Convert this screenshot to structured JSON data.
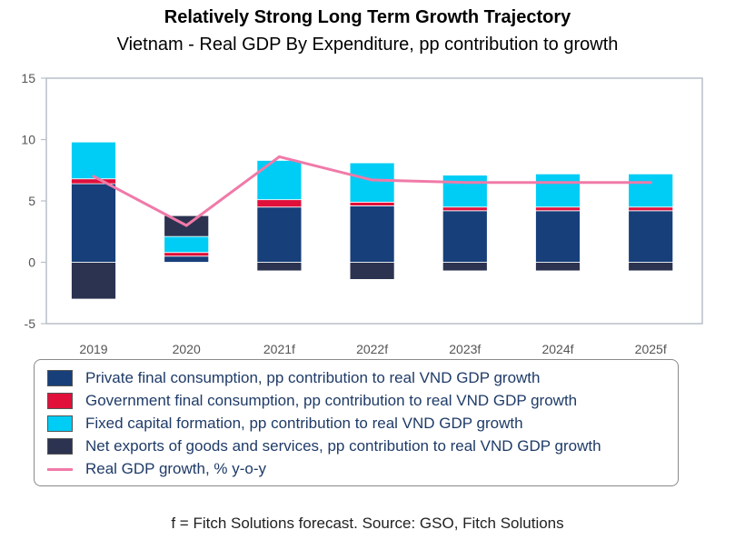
{
  "header": {
    "title": "Relatively Strong Long Term Growth Trajectory",
    "subtitle": "Vietnam - Real GDP By Expenditure, pp contribution to growth"
  },
  "footnote": "f = Fitch Solutions forecast. Source: GSO, Fitch Solutions",
  "colors": {
    "private": "#173f7a",
    "government": "#e0103a",
    "fixed": "#00cdf5",
    "net_exports": "#2b3350",
    "gdp_line": "#f07aa8"
  },
  "chart_data": {
    "type": "bar",
    "stacked": true,
    "title": "Relatively Strong Long Term Growth Trajectory",
    "subtitle": "Vietnam - Real GDP By Expenditure, pp contribution to growth",
    "categories": [
      "2019",
      "2020",
      "2021f",
      "2022f",
      "2023f",
      "2024f",
      "2025f"
    ],
    "ylim": [
      -5,
      15
    ],
    "yticks": [
      -5,
      0,
      5,
      10,
      15
    ],
    "grid": false,
    "legend_position": "bottom",
    "series": [
      {
        "name": "Private final consumption, pp contribution to real VND GDP growth",
        "kind": "bar",
        "values": [
          6.4,
          0.5,
          4.5,
          4.6,
          4.2,
          4.2,
          4.2
        ]
      },
      {
        "name": "Government final consumption, pp contribution to real VND GDP growth",
        "kind": "bar",
        "values": [
          0.4,
          0.3,
          0.6,
          0.3,
          0.3,
          0.3,
          0.3
        ]
      },
      {
        "name": "Fixed capital formation, pp contribution to real VND GDP growth",
        "kind": "bar",
        "values": [
          3.0,
          1.3,
          3.2,
          3.2,
          2.6,
          2.7,
          2.7
        ]
      },
      {
        "name": "Net exports of goods and services, pp contribution to real VND GDP growth",
        "kind": "bar",
        "values": [
          -3.0,
          1.7,
          -0.7,
          -1.4,
          -0.7,
          -0.7,
          -0.7
        ]
      },
      {
        "name": "Real GDP growth, % y-o-y",
        "kind": "line",
        "values": [
          7.0,
          3.0,
          8.6,
          6.7,
          6.5,
          6.5,
          6.5
        ]
      }
    ]
  }
}
